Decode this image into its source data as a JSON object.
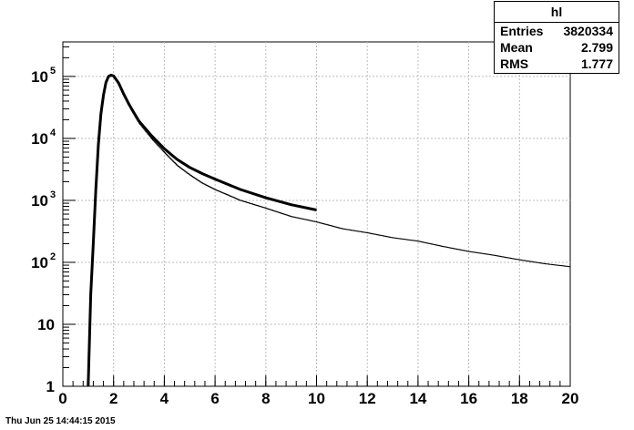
{
  "chart_data": {
    "type": "line",
    "title": "",
    "xlabel": "",
    "ylabel": "",
    "xlim": [
      0,
      20
    ],
    "ylim": [
      1,
      300000
    ],
    "yscale": "log",
    "grid": true,
    "xticks": [
      "0",
      "2",
      "4",
      "6",
      "8",
      "10",
      "12",
      "14",
      "16",
      "18",
      "20"
    ],
    "yticks": [
      {
        "mantissa": "1",
        "exp": ""
      },
      {
        "mantissa": "10",
        "exp": ""
      },
      {
        "mantissa": "10",
        "exp": "2"
      },
      {
        "mantissa": "10",
        "exp": "3"
      },
      {
        "mantissa": "10",
        "exp": "4"
      },
      {
        "mantissa": "10",
        "exp": "5"
      }
    ],
    "series": [
      {
        "style": "histogram",
        "x": [
          1.0,
          1.1,
          1.2,
          1.3,
          1.4,
          1.5,
          1.6,
          1.7,
          1.8,
          1.9,
          2.0,
          2.2,
          2.4,
          2.6,
          2.8,
          3.0,
          3.5,
          4.0,
          4.5,
          5.0,
          5.5,
          6.0,
          7.0,
          8.0,
          9.0,
          10.0,
          11.0,
          12.0,
          13.0,
          14.0,
          15.0,
          16.0,
          17.0,
          18.0,
          19.0,
          20.0
        ],
        "y": [
          1,
          30,
          200,
          1500,
          8000,
          25000,
          50000,
          80000,
          100000,
          105000,
          100000,
          75000,
          50000,
          35000,
          25000,
          18000,
          10000,
          6000,
          3700,
          2600,
          1900,
          1500,
          1000,
          750,
          550,
          450,
          350,
          300,
          250,
          220,
          180,
          150,
          130,
          110,
          95,
          85
        ]
      },
      {
        "style": "fit",
        "x": [
          1.0,
          1.1,
          1.2,
          1.3,
          1.4,
          1.5,
          1.6,
          1.7,
          1.8,
          1.9,
          2.0,
          2.2,
          2.4,
          2.6,
          2.8,
          3.0,
          3.5,
          4.0,
          4.5,
          5.0,
          5.5,
          6.0,
          7.0,
          8.0,
          9.0,
          10.0
        ],
        "y": [
          1,
          30,
          200,
          1500,
          8000,
          25000,
          50000,
          80000,
          100000,
          105000,
          102000,
          78000,
          52000,
          36000,
          26000,
          19000,
          11000,
          6800,
          4600,
          3400,
          2700,
          2200,
          1500,
          1100,
          850,
          700
        ]
      }
    ]
  },
  "stats_box": {
    "title": "hl",
    "rows": [
      {
        "label": "Entries",
        "value": "3820334"
      },
      {
        "label": "Mean",
        "value": "2.799"
      },
      {
        "label": "RMS",
        "value": "1.777"
      }
    ]
  },
  "footer": "Thu Jun 25 14:44:15 2015"
}
